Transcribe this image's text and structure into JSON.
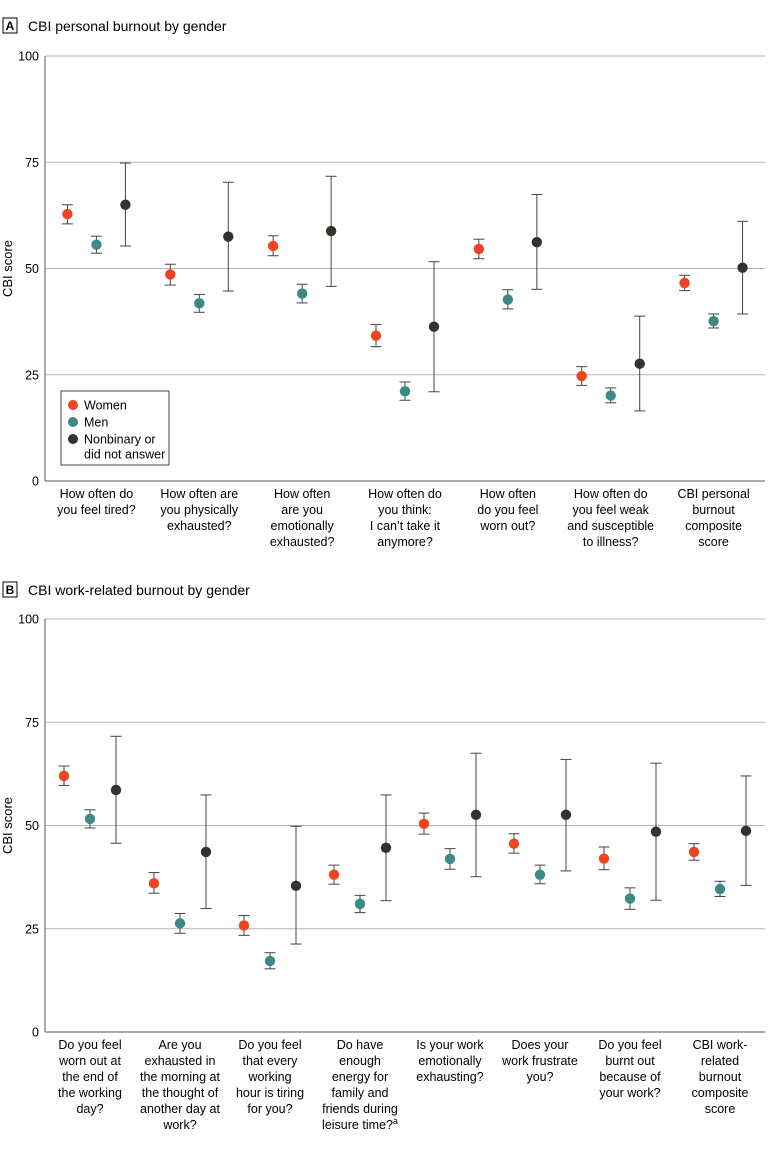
{
  "colors": {
    "women": "#ee4422",
    "men": "#3a8a88",
    "nonbinary": "#33332b",
    "grid": "#b5b5b5",
    "axis": "#555555"
  },
  "legend": {
    "items": [
      {
        "key": "women",
        "label": "Women"
      },
      {
        "key": "men",
        "label": "Men"
      },
      {
        "key": "nonbinary",
        "label": "Nonbinary or did not answer",
        "lines": [
          "Nonbinary or",
          "did not answer"
        ]
      }
    ]
  },
  "chart_data": [
    {
      "panel_letter": "A",
      "type": "scatter",
      "title": "CBI personal burnout by gender",
      "ylabel": "CBI score",
      "ylim": [
        0,
        100
      ],
      "yticks": [
        "0",
        "25",
        "50",
        "75",
        "100"
      ],
      "legend_position": "bottom-left",
      "categories": [
        {
          "label": "How often do you feel tired?",
          "lines": [
            "How often do",
            "you feel tired?"
          ]
        },
        {
          "label": "How often are you physically exhausted?",
          "lines": [
            "How often are",
            "you physically",
            "exhausted?"
          ]
        },
        {
          "label": "How often are you emotionally exhausted?",
          "lines": [
            "How often",
            "are you",
            "emotionally",
            "exhausted?"
          ]
        },
        {
          "label": "How often do you think: I can’t take it anymore?",
          "lines": [
            "How often do",
            "you think:",
            "I can’t take it",
            "anymore?"
          ]
        },
        {
          "label": "How often do you feel worn out?",
          "lines": [
            "How often",
            "do you feel",
            "worn out?"
          ]
        },
        {
          "label": "How often do you feel weak and susceptible to illness?",
          "lines": [
            "How often do",
            "you feel weak",
            "and susceptible",
            "to illness?"
          ]
        },
        {
          "label": "CBI personal burnout composite score",
          "lines": [
            "CBI personal",
            "burnout",
            "composite",
            "score"
          ]
        }
      ],
      "series": [
        {
          "name": "Women",
          "key": "women",
          "values": [
            62.8,
            48.6,
            55.3,
            34.2,
            54.6,
            24.7,
            46.6
          ],
          "lower": [
            60.5,
            46.1,
            53.0,
            31.6,
            52.3,
            22.5,
            44.8
          ],
          "upper": [
            65.0,
            51.0,
            57.7,
            36.8,
            56.9,
            26.9,
            48.4
          ]
        },
        {
          "name": "Men",
          "key": "men",
          "values": [
            55.6,
            41.8,
            44.1,
            21.1,
            42.7,
            20.1,
            37.6
          ],
          "lower": [
            53.6,
            39.7,
            41.9,
            19.0,
            40.5,
            18.4,
            36.0
          ],
          "upper": [
            57.6,
            43.9,
            46.3,
            23.3,
            45.0,
            21.9,
            39.3
          ]
        },
        {
          "name": "Nonbinary or did not answer",
          "key": "nonbinary",
          "values": [
            65.0,
            57.5,
            58.8,
            36.3,
            56.2,
            27.6,
            50.2
          ],
          "lower": [
            55.3,
            44.7,
            45.8,
            21.0,
            45.1,
            16.5,
            39.3
          ],
          "upper": [
            74.8,
            70.3,
            71.7,
            51.6,
            67.4,
            38.8,
            61.1
          ]
        }
      ]
    },
    {
      "panel_letter": "B",
      "type": "scatter",
      "title": "CBI work-related burnout by gender",
      "ylabel": "CBI score",
      "ylim": [
        0,
        100
      ],
      "yticks": [
        "0",
        "25",
        "50",
        "75",
        "100"
      ],
      "categories": [
        {
          "label": "Do you feel worn out at the end of the working day?",
          "lines": [
            "Do you feel",
            "worn out at",
            "the end of",
            "the working",
            "day?"
          ]
        },
        {
          "label": "Are you exhausted in the morning at the thought of another day at work?",
          "lines": [
            "Are you",
            "exhausted in",
            "the morning at",
            "the thought of",
            "another day at",
            "work?"
          ]
        },
        {
          "label": "Do you feel that every working hour is tiring for you?",
          "lines": [
            "Do you feel",
            "that every",
            "working",
            "hour is tiring",
            "for you?"
          ]
        },
        {
          "label": "Do have enough energy for family and friends during leisure time?a",
          "lines": [
            "Do have",
            "enough",
            "energy for",
            "family and",
            "friends during",
            "leisure time?"
          ],
          "footnote": "a"
        },
        {
          "label": "Is your work emotionally exhausting?",
          "lines": [
            "Is your work",
            "emotionally",
            "exhausting?"
          ]
        },
        {
          "label": "Does your work frustrate you?",
          "lines": [
            "Does your",
            "work frustrate",
            "you?"
          ]
        },
        {
          "label": "Do you feel burnt out because of your work?",
          "lines": [
            "Do you feel",
            "burnt out",
            "because of",
            "your work?"
          ]
        },
        {
          "label": "CBI work-related burnout composite score",
          "lines": [
            "CBI work-",
            "related",
            "burnout",
            "composite",
            "score"
          ]
        }
      ],
      "series": [
        {
          "name": "Women",
          "key": "women",
          "values": [
            62.0,
            36.0,
            25.8,
            38.1,
            50.4,
            45.6,
            42.0,
            43.6
          ],
          "lower": [
            59.7,
            33.6,
            23.4,
            35.8,
            47.9,
            43.3,
            39.3,
            41.6
          ],
          "upper": [
            64.4,
            38.6,
            28.2,
            40.4,
            53.0,
            48.0,
            44.8,
            45.6
          ]
        },
        {
          "name": "Men",
          "key": "men",
          "values": [
            51.6,
            26.3,
            17.2,
            31.0,
            41.9,
            38.1,
            32.3,
            34.6
          ],
          "lower": [
            49.4,
            23.9,
            15.3,
            28.9,
            39.4,
            35.9,
            29.7,
            32.8
          ],
          "upper": [
            53.8,
            28.7,
            19.2,
            33.1,
            44.4,
            40.4,
            34.9,
            36.5
          ]
        },
        {
          "name": "Nonbinary or did not answer",
          "key": "nonbinary",
          "values": [
            58.6,
            43.6,
            35.4,
            44.6,
            52.6,
            52.6,
            48.5,
            48.7
          ],
          "lower": [
            45.7,
            29.9,
            21.3,
            31.8,
            37.6,
            39.0,
            31.9,
            35.5
          ],
          "upper": [
            71.6,
            57.4,
            49.8,
            57.4,
            67.5,
            66.0,
            65.1,
            62.0
          ]
        }
      ]
    }
  ]
}
